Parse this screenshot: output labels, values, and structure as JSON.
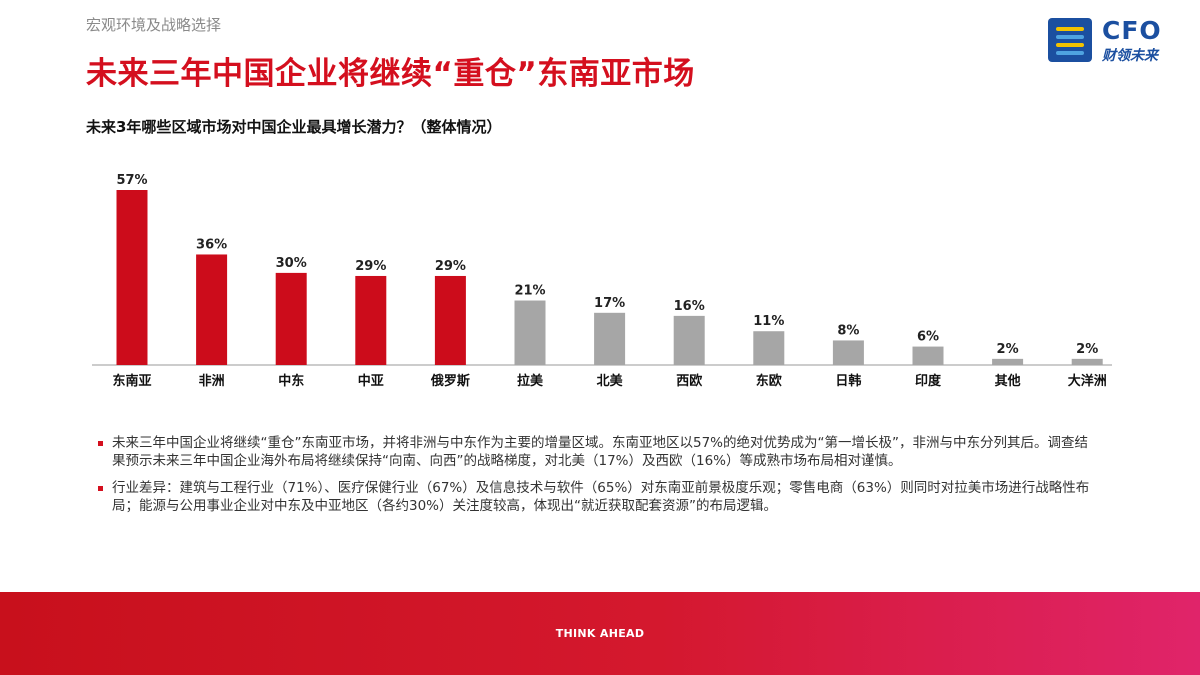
{
  "header": {
    "section_label": "宏观环境及战略选择",
    "title": "未来三年中国企业将继续“重仓”东南亚市场"
  },
  "logo": {
    "main": "CFO",
    "sub": "财领未来"
  },
  "chart_title": "未来3年哪些区域市场对中国企业最具增长潜力？（整体情况）",
  "chart_data": {
    "type": "bar",
    "categories": [
      "东南亚",
      "非洲",
      "中东",
      "中亚",
      "俄罗斯",
      "拉美",
      "北美",
      "西欧",
      "东欧",
      "日韩",
      "印度",
      "其他",
      "大洋洲"
    ],
    "values": [
      57,
      36,
      30,
      29,
      29,
      21,
      17,
      16,
      11,
      8,
      6,
      2,
      2
    ],
    "value_labels": [
      "57%",
      "36%",
      "30%",
      "29%",
      "29%",
      "21%",
      "17%",
      "16%",
      "11%",
      "8%",
      "6%",
      "2%",
      "2%"
    ],
    "highlight_count": 5,
    "highlight_color": "#cc0c1b",
    "other_color": "#a6a6a6",
    "ylim": [
      0,
      60
    ],
    "grid": false
  },
  "notes": [
    "未来三年中国企业将继续“重仓”东南亚市场，并将非洲与中东作为主要的增量区域。东南亚地区以57%的绝对优势成为“第一增长极”，非洲与中东分列其后。调查结果预示未来三年中国企业海外布局将继续保持“向南、向西”的战略梯度，对北美（17%）及西欧（16%）等成熟市场布局相对谨慎。",
    "行业差异：建筑与工程行业（71%）、医疗保健行业（67%）及信息技术与软件（65%）对东南亚前景极度乐观；零售电商（63%）则同时对拉美市场进行战略性布局；能源与公用事业企业对中东及中亚地区（各约30%）关注度较高，体现出“就近获取配套资源”的布局逻辑。"
  ],
  "footer": {
    "text": "THINK AHEAD",
    "color": "#d4182e"
  }
}
